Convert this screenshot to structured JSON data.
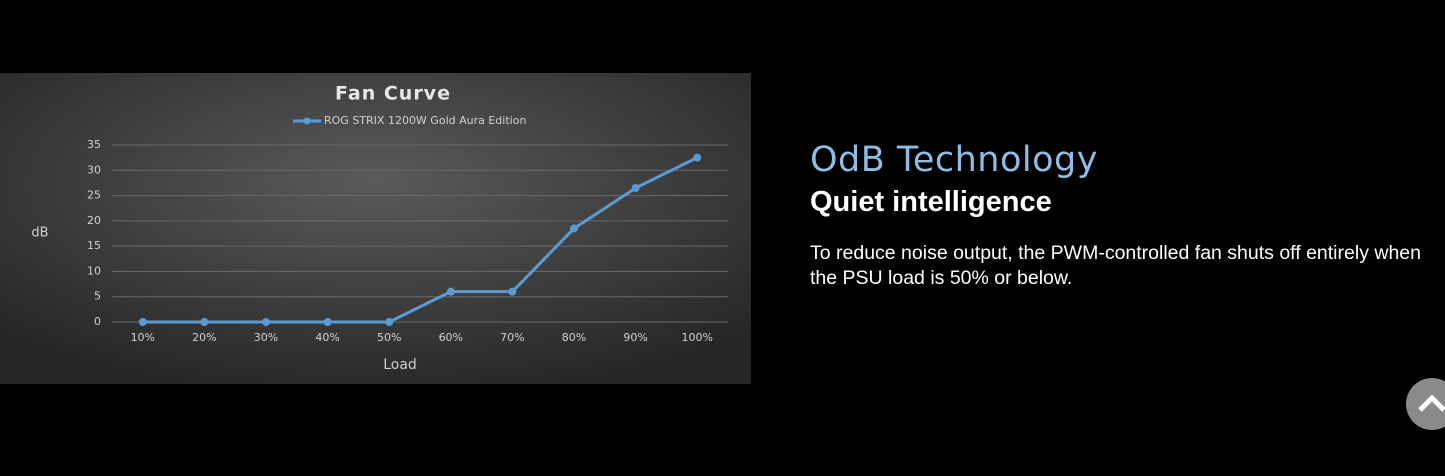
{
  "chart_data": {
    "type": "line",
    "title": "Fan Curve",
    "x_label": "Load",
    "y_label": "dB",
    "categories": [
      "10%",
      "20%",
      "30%",
      "40%",
      "50%",
      "60%",
      "70%",
      "80%",
      "90%",
      "100%"
    ],
    "series": [
      {
        "name": "ROG STRIX 1200W Gold Aura Edition",
        "color": "#5b9bd5",
        "values": [
          0,
          0,
          0,
          0,
          0,
          6,
          6,
          18.5,
          26.5,
          32.5
        ]
      }
    ],
    "ylim": [
      0,
      35
    ],
    "yticks": [
      0,
      5,
      10,
      15,
      20,
      25,
      30,
      35
    ],
    "grid": true,
    "legend": "top"
  },
  "section": {
    "heading": "OdB Technology",
    "subheading": "Quiet intelligence",
    "body": "To reduce noise output, the PWM-controlled fan shuts off entirely when the PSU load is 50% or below."
  }
}
